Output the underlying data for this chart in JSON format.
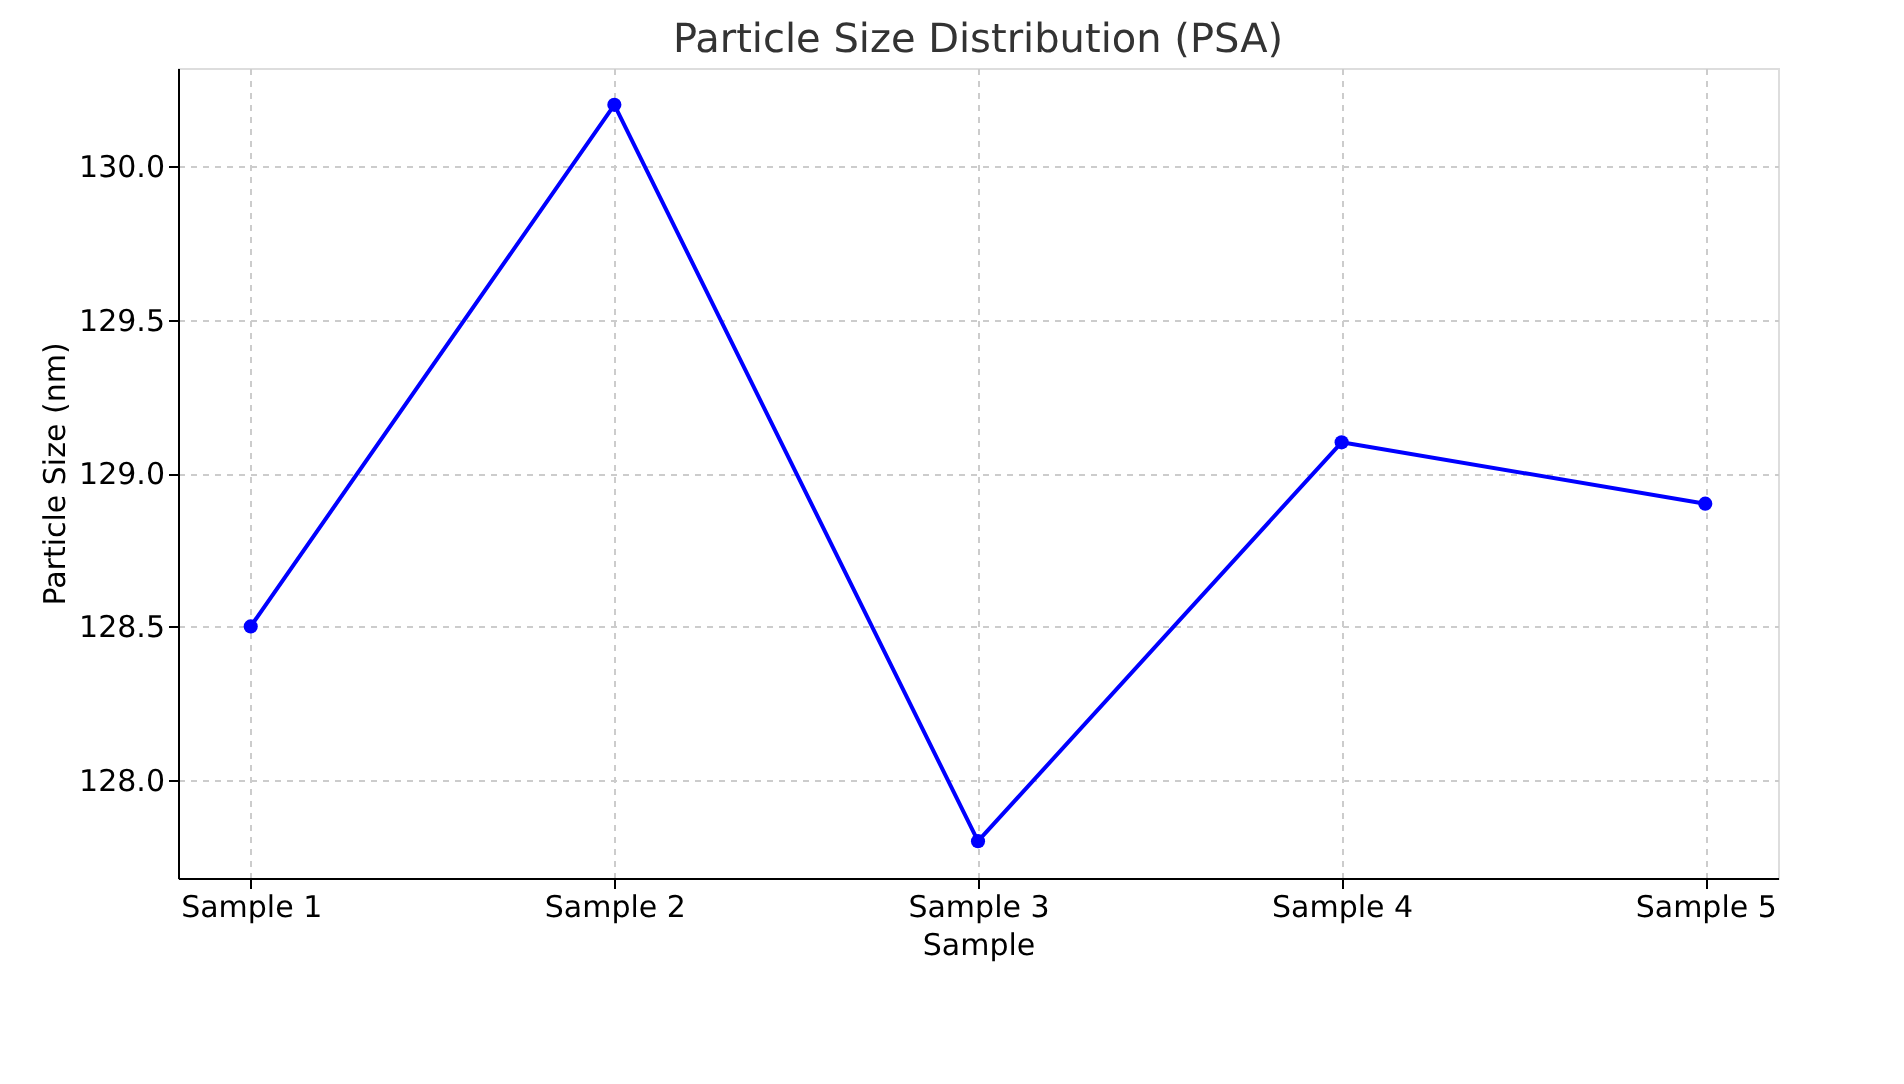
{
  "chart_data": {
    "type": "line",
    "title": "Particle Size Distribution (PSA)",
    "xlabel": "Sample",
    "ylabel": "Particle Size (nm)",
    "categories": [
      "Sample 1",
      "Sample 2",
      "Sample 3",
      "Sample 4",
      "Sample 5"
    ],
    "series": [
      {
        "color": "#0000ff",
        "values": [
          128.5,
          130.2,
          127.8,
          129.1,
          128.9
        ]
      }
    ],
    "ylim": [
      127.68,
      130.32
    ],
    "yticks": [
      {
        "value": 128,
        "label": "128.0"
      },
      128.5,
      {
        "value": 129,
        "label": "129.0"
      },
      129.5,
      {
        "value": 130,
        "label": "130.0"
      }
    ],
    "grid": true,
    "marker": "circle",
    "line_style": "solid"
  }
}
